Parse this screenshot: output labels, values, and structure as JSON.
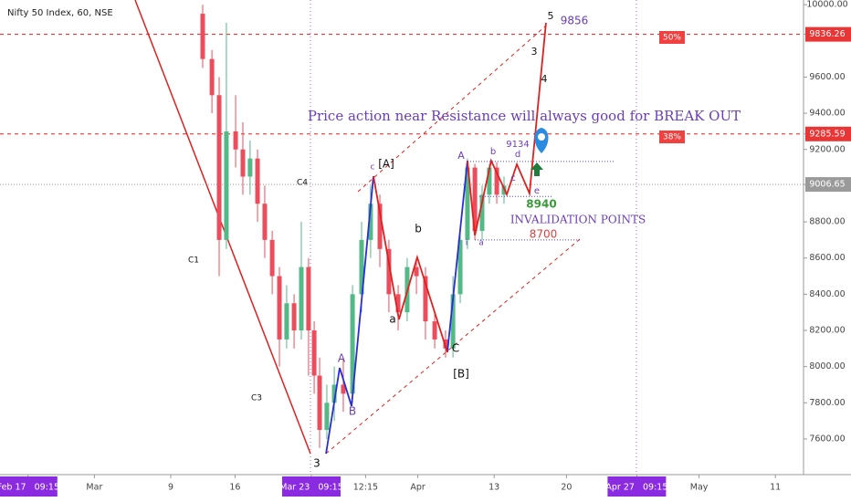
{
  "chart_data": {
    "type": "candlestick",
    "title": "Nifty 50 Index, 60, NSE",
    "xlim": [
      0,
      400
    ],
    "ylim": [
      7403,
      10026
    ],
    "xticks": [
      {
        "value": 14,
        "label": "Feb 17   09:15"
      },
      {
        "value": 47,
        "label": "Mar"
      },
      {
        "value": 85,
        "label": "9"
      },
      {
        "value": 117,
        "label": "16"
      },
      {
        "value": 155,
        "label": "Mar 23   09:15"
      },
      {
        "value": 182,
        "label": "12:15"
      },
      {
        "value": 208,
        "label": "Apr"
      },
      {
        "value": 246,
        "label": "13"
      },
      {
        "value": 282,
        "label": "20"
      },
      {
        "value": 317,
        "label": "Apr 27   09:15"
      },
      {
        "value": 348,
        "label": "May"
      },
      {
        "value": 386,
        "label": "11"
      }
    ],
    "yticks": [
      {
        "value": 10000,
        "label": "10000.00"
      },
      {
        "value": 9836.26,
        "label": "9836.26"
      },
      {
        "value": 9600,
        "label": "9600.00"
      },
      {
        "value": 9400,
        "label": "9400.00"
      },
      {
        "value": 9285.59,
        "label": "9285.59"
      },
      {
        "value": 9200,
        "label": "9200.00"
      },
      {
        "value": 9006.65,
        "label": "9006.65"
      },
      {
        "value": 8800,
        "label": "8800.00"
      },
      {
        "value": 8600,
        "label": "8600.00"
      },
      {
        "value": 8400,
        "label": "8400.00"
      },
      {
        "value": 8200,
        "label": "8200.00"
      },
      {
        "value": 8000,
        "label": "8000.00"
      },
      {
        "value": 7800,
        "label": "7800.00"
      },
      {
        "value": 7600,
        "label": "7600.00"
      }
    ],
    "candles": {
      "up_color": "#53b987",
      "down_color": "#eb4d5c",
      "x": [
        100.9,
        105.5,
        109.1,
        112.7,
        117.3,
        120.9,
        124.5,
        128.2,
        131.8,
        135.5,
        139.1,
        142.7,
        146.4,
        150,
        153.6,
        156.4,
        159.1,
        162.7,
        166.4,
        170.9,
        175.5,
        180,
        184.5,
        189.1,
        193.6,
        198.2,
        202.7,
        207.3,
        211.8,
        216.4,
        221.8,
        225.5,
        229.1,
        232.7,
        236.4,
        240,
        243.6,
        247.3,
        250.9
      ],
      "open": [
        9950,
        9700,
        9500,
        8700,
        9300,
        9200,
        9050,
        9150,
        8900,
        8700,
        8500,
        8150,
        8350,
        8200,
        8550,
        8200,
        7950,
        7650,
        7800,
        7900,
        7850,
        8400,
        8700,
        8900,
        8650,
        8400,
        8300,
        8550,
        8500,
        8250,
        8150,
        8100,
        8400,
        8700,
        9100,
        8750,
        8950,
        9100,
        8950
      ],
      "high": [
        10000,
        9750,
        9600,
        9900,
        9500,
        9350,
        9250,
        9200,
        9000,
        8750,
        8550,
        8450,
        8400,
        8800,
        8600,
        8250,
        8050,
        7900,
        8000,
        8050,
        8450,
        8800,
        9000,
        8950,
        8700,
        8450,
        8600,
        8600,
        8550,
        8300,
        8200,
        8500,
        8750,
        9150,
        9120,
        9000,
        9120,
        9130,
        9050
      ],
      "low": [
        9650,
        9400,
        8500,
        8650,
        9100,
        8950,
        8950,
        8800,
        8600,
        8400,
        8000,
        8100,
        8100,
        8150,
        7950,
        7850,
        7550,
        7600,
        7700,
        7750,
        7800,
        8300,
        8600,
        8550,
        8300,
        8200,
        8250,
        8400,
        8150,
        8100,
        8050,
        8050,
        8350,
        8650,
        8700,
        8700,
        8900,
        8900,
        8900
      ],
      "close": [
        9700,
        9500,
        8700,
        9300,
        9200,
        9050,
        9150,
        8900,
        8700,
        8500,
        8150,
        8350,
        8200,
        8550,
        8200,
        7950,
        7650,
        7800,
        7900,
        7850,
        8400,
        8700,
        8900,
        8650,
        8400,
        8300,
        8550,
        8500,
        8250,
        8150,
        8100,
        8400,
        8700,
        9100,
        8750,
        8950,
        9100,
        8950,
        9000
      ]
    },
    "series": [
      {
        "color": "#2b2bd8",
        "x": [
          162.3,
          169.1,
          175,
          185.9
        ],
        "values": [
          7519,
          7993,
          7782,
          9052
        ]
      },
      {
        "color": "#2b2bd8",
        "x": [
          222.7,
          232.7
        ],
        "values": [
          8079,
          9138
        ]
      },
      {
        "color": "#e02020",
        "x": [
          185.9,
          198.6,
          207.7,
          222.7
        ],
        "values": [
          9052,
          8261,
          8604,
          8079
        ]
      },
      {
        "color": "#e02020",
        "x": [
          232.7,
          236.4,
          244.5,
          252.3,
          257.3,
          263.6,
          271.8
        ],
        "values": [
          9138,
          8725,
          9138,
          8952,
          9118,
          8957,
          9900
        ]
      }
    ],
    "price_labels": [
      9856,
      9134,
      8940,
      8700
    ],
    "annotations": [
      "C1",
      "C3",
      "C4",
      "3",
      "A",
      "B",
      "c",
      "[A]",
      "a",
      "b",
      "C",
      "[B]",
      "A",
      "b",
      "c",
      "d",
      "e",
      "a",
      "i",
      "3",
      "4",
      "5",
      "Price action near Resistance will always good for BREAK OUT",
      "INVALIDATION POINTS",
      "50%",
      "38%"
    ]
  }
}
